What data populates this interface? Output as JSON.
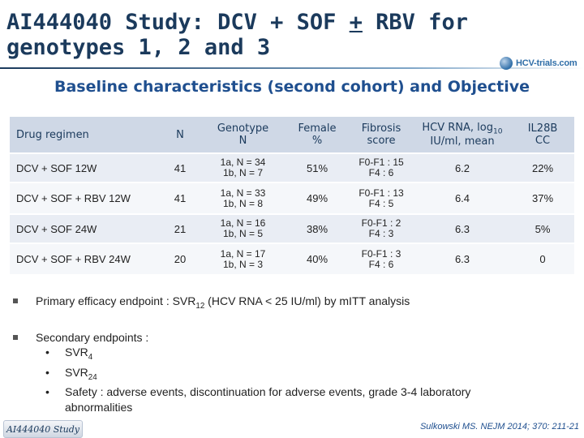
{
  "title": {
    "part1": "AI444040 Study: DCV + SOF ",
    "pm": "+",
    "part2": " RBV for",
    "line2": "genotypes 1, 2 and 3"
  },
  "logo": {
    "text": "HCV-trials.com"
  },
  "subtitle": "Baseline characteristics (second cohort) and Objective",
  "table": {
    "headers": {
      "drug": "Drug regimen",
      "n": "N",
      "genotype_line1": "Genotype",
      "genotype_line2": "N",
      "female_line1": "Female",
      "female_line2": "%",
      "fibrosis_line1": "Fibrosis",
      "fibrosis_line2": "score",
      "hcv_line1_pre": "HCV RNA, log",
      "hcv_line1_sub": "10",
      "hcv_line2": "IU/ml, mean",
      "il_line1": "IL28B",
      "il_line2": "CC"
    },
    "rows": [
      {
        "drug": "DCV + SOF 12W",
        "n": "41",
        "geno1": "1a, N = 34",
        "geno2": "1b, N = 7",
        "female": "51%",
        "fib1": "F0-F1 : 15",
        "fib2": "F4 : 6",
        "hcv": "6.2",
        "il": "22%"
      },
      {
        "drug": "DCV + SOF + RBV 12W",
        "n": "41",
        "geno1": "1a, N = 33",
        "geno2": "1b, N = 8",
        "female": "49%",
        "fib1": "F0-F1 : 13",
        "fib2": "F4 : 5",
        "hcv": "6.4",
        "il": "37%"
      },
      {
        "drug": "DCV + SOF 24W",
        "n": "21",
        "geno1": "1a, N = 16",
        "geno2": "1b, N = 5",
        "female": "38%",
        "fib1": "F0-F1 : 2",
        "fib2": "F4 : 3",
        "hcv": "6.3",
        "il": "5%"
      },
      {
        "drug": "DCV + SOF + RBV 24W",
        "n": "20",
        "geno1": "1a, N = 17",
        "geno2": "1b, N = 3",
        "female": "40%",
        "fib1": "F0-F1 : 3",
        "fib2": "F4 : 6",
        "hcv": "6.3",
        "il": "0"
      }
    ]
  },
  "bullets": {
    "primary_pre": "Primary efficacy endpoint : SVR",
    "primary_sub": "12",
    "primary_post": " (HCV RNA < 25 IU/ml) by mITT analysis",
    "secondary": "Secondary endpoints :",
    "svr4_pre": "SVR",
    "svr4_sub": "4",
    "svr24_pre": "SVR",
    "svr24_sub": "24",
    "safety_line1": "Safety : adverse events, discontinuation for adverse events, grade 3-4 laboratory",
    "safety_line2": "abnormalities"
  },
  "footer": {
    "tag": "AI444040 Study",
    "citation": "Sulkowski MS. NEJM 2014; 370: 211-21"
  }
}
